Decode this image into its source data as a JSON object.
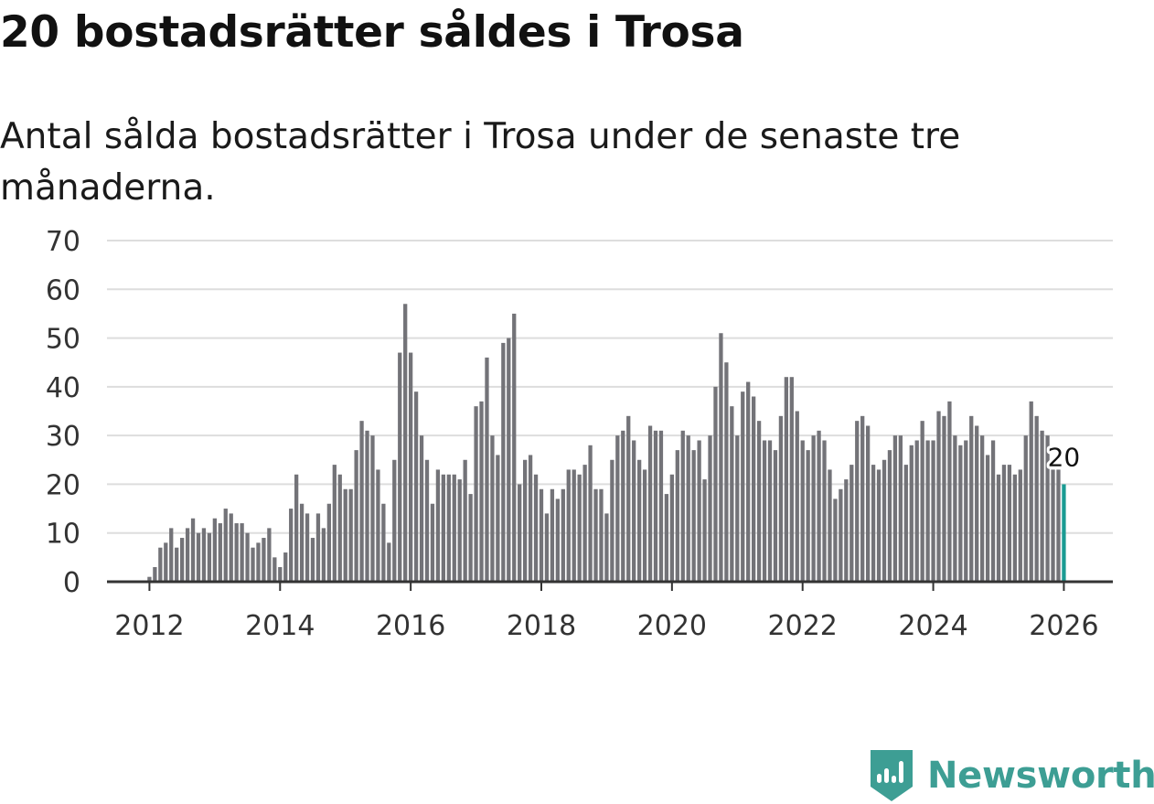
{
  "title": "20 bostadsrätter såldes i Trosa",
  "subtitle": "Antal sålda bostadsrätter i Trosa under de senaste tre månaderna.",
  "brand": {
    "name": "Newsworthy",
    "color": "#3d9e94"
  },
  "colors": {
    "bar": "#737378",
    "highlight": "#1a9b93",
    "grid": "#dddddd",
    "axis": "#333333"
  },
  "chart_data": {
    "type": "bar",
    "title": "20 bostadsrätter såldes i Trosa",
    "subtitle": "Antal sålda bostadsrätter i Trosa under de senaste tre månaderna.",
    "xlabel": "",
    "ylabel": "",
    "ylim": [
      0,
      70
    ],
    "yticks": [
      0,
      10,
      20,
      30,
      40,
      50,
      60,
      70
    ],
    "xlim": [
      2011.35,
      2026.75
    ],
    "xticks": [
      2012,
      2014,
      2016,
      2018,
      2020,
      2022,
      2024,
      2026
    ],
    "x_start": 2012,
    "x_step_months": 1,
    "grid": true,
    "highlight_label": "20",
    "values": [
      1,
      3,
      7,
      8,
      11,
      7,
      9,
      11,
      13,
      10,
      11,
      10,
      13,
      12,
      15,
      14,
      12,
      12,
      10,
      7,
      8,
      9,
      11,
      5,
      3,
      6,
      15,
      22,
      16,
      14,
      9,
      14,
      11,
      16,
      24,
      22,
      19,
      19,
      27,
      33,
      31,
      30,
      23,
      16,
      8,
      25,
      47,
      57,
      47,
      39,
      30,
      25,
      16,
      23,
      22,
      22,
      22,
      21,
      25,
      18,
      36,
      37,
      46,
      30,
      26,
      49,
      50,
      55,
      20,
      25,
      26,
      22,
      19,
      14,
      19,
      17,
      19,
      23,
      23,
      22,
      24,
      28,
      19,
      19,
      14,
      25,
      30,
      31,
      34,
      29,
      25,
      23,
      32,
      31,
      31,
      18,
      22,
      27,
      31,
      30,
      27,
      29,
      21,
      30,
      40,
      51,
      45,
      36,
      30,
      39,
      41,
      38,
      33,
      29,
      29,
      27,
      34,
      42,
      42,
      35,
      29,
      27,
      30,
      31,
      29,
      23,
      17,
      19,
      21,
      24,
      33,
      34,
      32,
      24,
      23,
      25,
      27,
      30,
      30,
      24,
      28,
      29,
      33,
      29,
      29,
      35,
      34,
      37,
      30,
      28,
      29,
      34,
      32,
      30,
      26,
      29,
      22,
      24,
      24,
      22,
      23,
      30,
      37,
      34,
      31,
      30,
      23,
      23,
      20
    ]
  }
}
